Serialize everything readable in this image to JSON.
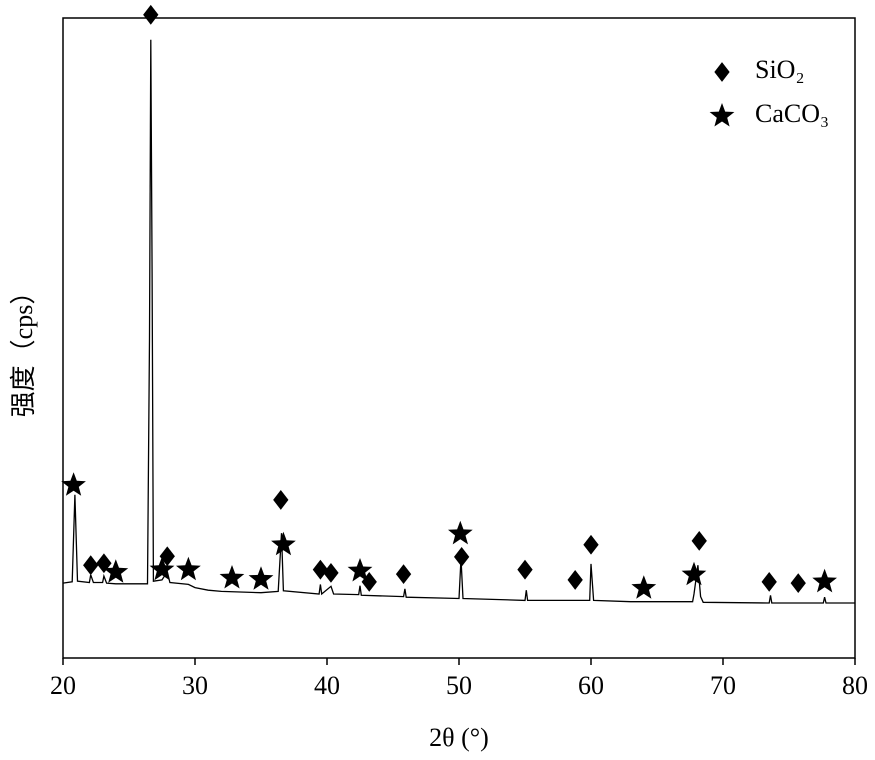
{
  "chart_data": {
    "type": "line",
    "xlabel": "2θ (°)",
    "ylabel": "强度（cps）",
    "xlim": [
      20,
      80
    ],
    "ylim": [
      0,
      100
    ],
    "xticks": [
      20,
      30,
      40,
      50,
      60,
      70,
      80
    ],
    "color": "#000000",
    "x": [
      20,
      20.7,
      20.9,
      21.1,
      22,
      22.1,
      22.3,
      23,
      23.1,
      23.3,
      24,
      26.4,
      26.55,
      26.65,
      26.75,
      26.85,
      27.5,
      27.9,
      28.1,
      29.5,
      30,
      31,
      32,
      35,
      36.3,
      36.55,
      36.7,
      39.4,
      39.5,
      39.6,
      40.3,
      40.5,
      42.4,
      42.5,
      42.6,
      45.8,
      45.9,
      46,
      50,
      50.15,
      50.3,
      55,
      55.1,
      55.2,
      59.9,
      60,
      60.2,
      63,
      67.7,
      67.8,
      68.1,
      68.3,
      68.5,
      73.5,
      73.6,
      73.7,
      77.6,
      77.7,
      77.8,
      80
    ],
    "values": [
      11.7,
      11.9,
      25.5,
      12,
      11.8,
      13,
      11.8,
      11.8,
      12.8,
      11.7,
      11.6,
      11.6,
      50,
      96.6,
      60,
      12,
      12.2,
      13.5,
      11.8,
      11.5,
      11,
      10.6,
      10.4,
      10.2,
      10.4,
      19.5,
      10.5,
      10,
      11.5,
      10,
      11.2,
      10,
      9.9,
      11.3,
      9.8,
      9.6,
      10.8,
      9.5,
      9.3,
      15.5,
      9.3,
      9,
      10.6,
      9,
      9,
      14.7,
      9,
      8.8,
      8.8,
      10,
      14.5,
      9.6,
      8.7,
      8.6,
      9.8,
      8.6,
      8.6,
      9.5,
      8.6,
      8.6
    ],
    "markers": [
      {
        "name": "SiO₂",
        "symbol": "diamond",
        "color": "#000000",
        "x": [
          26.65,
          22.1,
          23.1,
          27.9,
          36.5,
          39.5,
          40.3,
          43.2,
          45.8,
          50.2,
          55.0,
          58.8,
          60.0,
          68.2,
          73.5,
          75.7
        ],
        "y": [
          100.5,
          14.5,
          14.8,
          15.9,
          24.7,
          13.8,
          13.3,
          11.9,
          13.1,
          15.8,
          13.8,
          12.2,
          17.7,
          18.3,
          11.9,
          11.7
        ]
      },
      {
        "name": "CaCO₃",
        "symbol": "star",
        "color": "#000000",
        "x": [
          20.8,
          24.0,
          27.5,
          29.5,
          32.8,
          35.0,
          36.7,
          42.5,
          50.1,
          64.0,
          67.8,
          77.7
        ],
        "y": [
          27.0,
          13.4,
          13.8,
          13.8,
          12.5,
          12.3,
          17.7,
          13.6,
          19.4,
          10.9,
          13.0,
          11.9
        ]
      }
    ]
  }
}
